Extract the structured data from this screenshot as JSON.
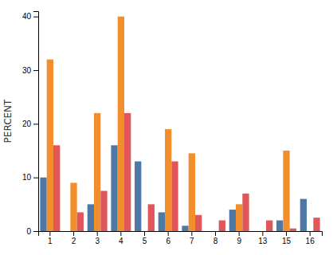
{
  "chart_data": {
    "type": "bar",
    "categories": [
      "1",
      "2",
      "3",
      "4",
      "5",
      "6",
      "7",
      "8",
      "9",
      "13",
      "15",
      "16"
    ],
    "series": [
      {
        "values": [
          10,
          0,
          5,
          16,
          13,
          3.5,
          1,
          0,
          4,
          0,
          2,
          6
        ]
      },
      {
        "values": [
          32,
          9,
          22,
          40,
          0,
          19,
          14.5,
          0,
          5,
          0,
          15,
          0
        ]
      },
      {
        "values": [
          16,
          3.5,
          7.5,
          22,
          5,
          13,
          3,
          2,
          7,
          2,
          0.5,
          2.5
        ]
      }
    ],
    "ylabel": "PERCENT",
    "ylim": [
      0,
      41
    ],
    "yticks": [
      0,
      10,
      20,
      30,
      40
    ],
    "grid": false
  }
}
